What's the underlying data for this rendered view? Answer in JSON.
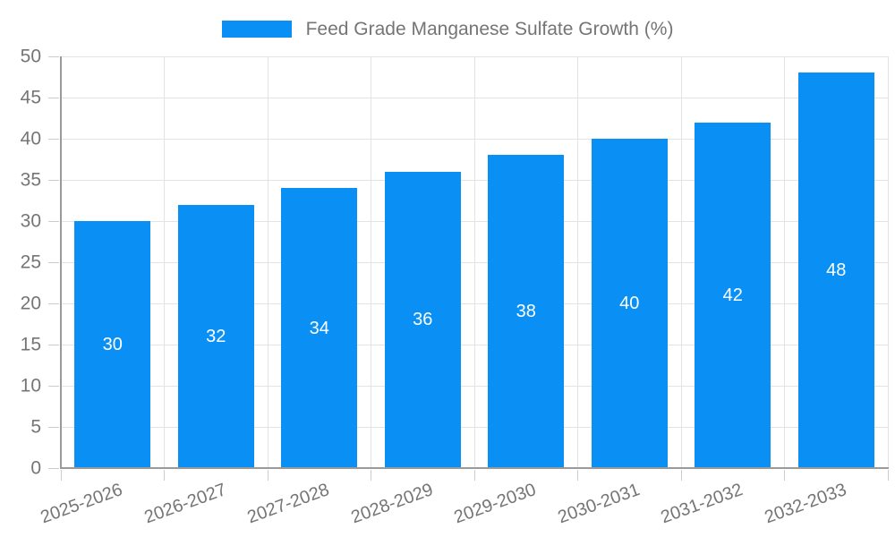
{
  "legend": {
    "label": "Feed Grade Manganese Sulfate Growth (%)"
  },
  "chart_data": {
    "type": "bar",
    "title": "",
    "xlabel": "",
    "ylabel": "",
    "categories": [
      "2025-2026",
      "2026-2027",
      "2027-2028",
      "2028-2029",
      "2029-2030",
      "2030-2031",
      "2031-2032",
      "2032-2033"
    ],
    "series": [
      {
        "name": "Feed Grade Manganese Sulfate Growth (%)",
        "values": [
          30,
          32,
          34,
          36,
          38,
          40,
          42,
          48
        ]
      }
    ],
    "bar_value_labels": [
      "30",
      "32",
      "34",
      "36",
      "38",
      "40",
      "42",
      "48"
    ],
    "ylim": [
      0,
      50
    ],
    "ytick_step": 5,
    "ytick_labels": [
      "0",
      "5",
      "10",
      "15",
      "20",
      "25",
      "30",
      "35",
      "40",
      "45",
      "50"
    ],
    "grid": true,
    "legend_position": "top-center",
    "colors": {
      "bar": "#0a90f5",
      "bar_value_text": "#ffffff",
      "tick_text": "#757575",
      "legend_text": "#757575",
      "gridline": "#e3e3e3",
      "tick_mark": "#cccccc",
      "axis_line": "#9a9a9a",
      "background": "#ffffff"
    }
  }
}
